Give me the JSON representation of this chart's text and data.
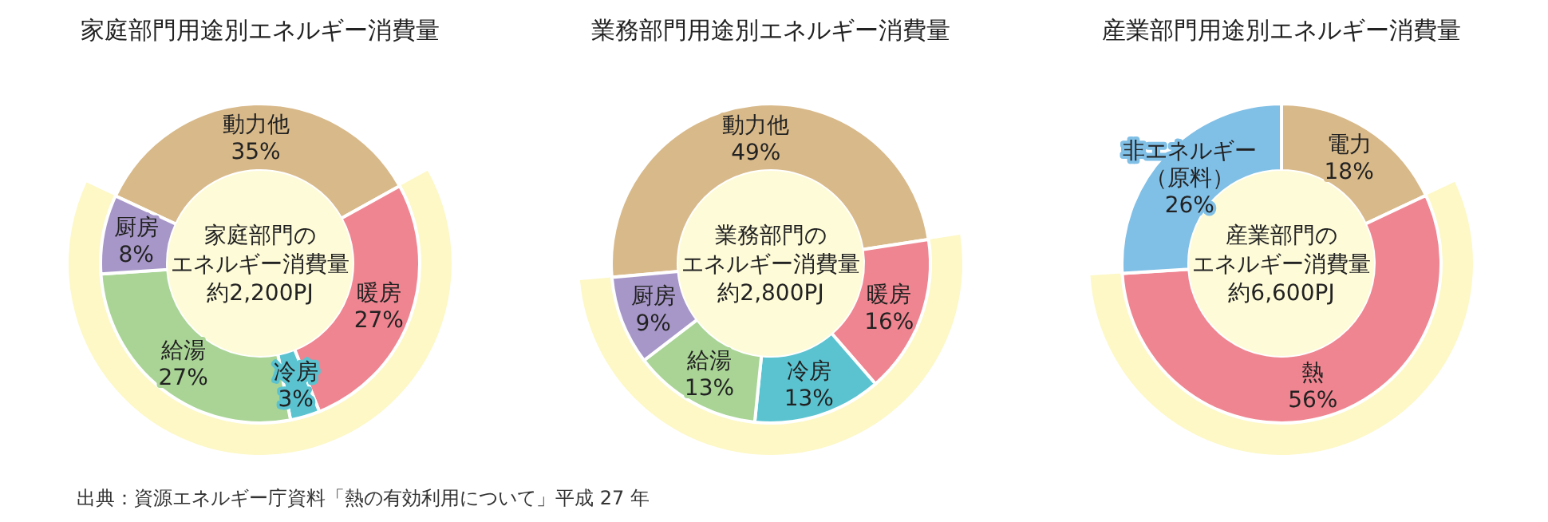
{
  "chart_data": [
    {
      "type": "donut",
      "title": "家庭部門用途別エネルギー消費量",
      "categories": [
        "動力他",
        "暖房",
        "冷房",
        "給湯",
        "厨房"
      ],
      "values": [
        35,
        27,
        3,
        27,
        8
      ],
      "value_labels": [
        "35%",
        "27%",
        "3%",
        "27%",
        "8%"
      ],
      "colors": [
        "#d8b98a",
        "#ef8590",
        "#5bc3d0",
        "#a9d496",
        "#a797c9"
      ],
      "legend": false,
      "annotations": [
        "家庭部門の",
        "エネルギー消費量",
        "約2,200PJ",
        "出典：資源エネルギー庁資料「熱の有効利用について」平成 27 年"
      ]
    },
    {
      "type": "donut",
      "title": "業務部門用途別エネルギー消費量",
      "categories": [
        "動力他",
        "暖房",
        "冷房",
        "給湯",
        "厨房"
      ],
      "values": [
        49,
        16,
        13,
        13,
        9
      ],
      "value_labels": [
        "49%",
        "16%",
        "13%",
        "13%",
        "9%"
      ],
      "colors": [
        "#d8b98a",
        "#ef8590",
        "#5bc3d0",
        "#a9d496",
        "#a797c9"
      ],
      "legend": false,
      "annotations": [
        "業務部門の",
        "エネルギー消費量",
        "約2,800PJ"
      ]
    },
    {
      "type": "donut",
      "title": "産業部門用途別エネルギー消費量",
      "categories": [
        "電力",
        "熱",
        "非エネルギー（原料）"
      ],
      "values": [
        18,
        56,
        26
      ],
      "value_labels": [
        "18%",
        "56%",
        "26%"
      ],
      "colors": [
        "#d8b98a",
        "#ef8590",
        "#80bfe6"
      ],
      "legend": false,
      "annotations": [
        "産業部門の",
        "エネルギー消費量",
        "約6,600PJ"
      ]
    }
  ]
}
